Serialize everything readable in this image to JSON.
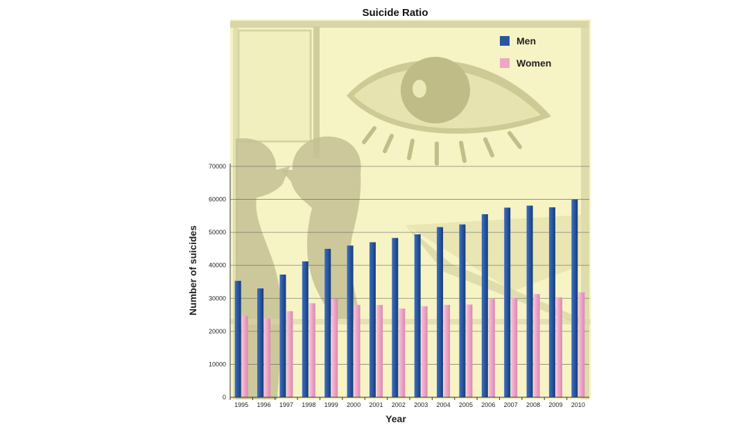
{
  "chart_data": {
    "type": "bar",
    "title": "Suicide Ratio",
    "xlabel": "Year",
    "ylabel": "Number of suicides",
    "categories": [
      "1995",
      "1996",
      "1997",
      "1998",
      "1999",
      "2000",
      "2001",
      "2002",
      "2003",
      "2004",
      "2005",
      "2006",
      "2007",
      "2008",
      "2009",
      "2010"
    ],
    "series": [
      {
        "name": "Men",
        "color": "#2a56a0",
        "values": [
          35300,
          33000,
          37200,
          41200,
          45000,
          46000,
          47000,
          48300,
          49400,
          51600,
          52400,
          55500,
          57500,
          58100,
          57600,
          60000
        ]
      },
      {
        "name": "Women",
        "color": "#f0a5c8",
        "values": [
          24700,
          23900,
          26100,
          28500,
          29900,
          28000,
          28000,
          26900,
          27600,
          28000,
          28100,
          29800,
          30100,
          31300,
          30300,
          31800
        ]
      }
    ],
    "ylim": [
      0,
      70000
    ],
    "yticks": [
      0,
      10000,
      20000,
      30000,
      40000,
      50000,
      60000,
      70000
    ],
    "grid": true,
    "legend_position": "top-right",
    "background": "illustration of an eye and two silhouetted faces"
  }
}
